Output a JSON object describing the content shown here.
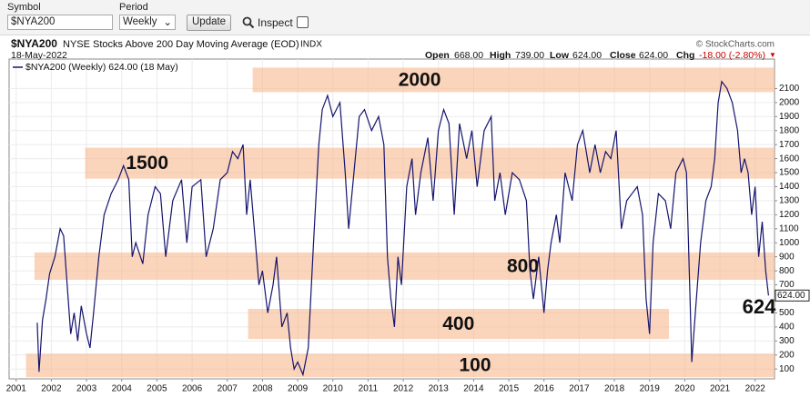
{
  "toolbar": {
    "symbol_label": "Symbol",
    "symbol_value": "$NYA200",
    "period_label": "Period",
    "period_value": "Weekly",
    "update_button": "Update",
    "inspect_label": "Inspect"
  },
  "chart_data": {
    "type": "line",
    "title": "$NYA200",
    "subtitle": "NYSE Stocks Above 200 Day Moving Average (EOD)",
    "exchange": "INDX",
    "source": "© StockCharts.com",
    "date": "18-May-2022",
    "quote": [
      {
        "label": "Open",
        "value": "668.00"
      },
      {
        "label": "High",
        "value": "739.00"
      },
      {
        "label": "Low",
        "value": "624.00"
      },
      {
        "label": "Close",
        "value": "624.00"
      },
      {
        "label": "Chg",
        "value": "-18.00 (-2.80%)"
      }
    ],
    "last_label": "624",
    "xlim": [
      2000.8,
      2022.55
    ],
    "ylim": [
      30,
      2310
    ],
    "xticks": [
      2001,
      2002,
      2003,
      2004,
      2005,
      2006,
      2007,
      2008,
      2009,
      2010,
      2011,
      2012,
      2013,
      2014,
      2015,
      2016,
      2017,
      2018,
      2019,
      2020,
      2021,
      2022
    ],
    "yticks": [
      100,
      200,
      300,
      400,
      500,
      600,
      700,
      800,
      900,
      1000,
      1100,
      1200,
      1300,
      1400,
      1500,
      1600,
      1700,
      1800,
      1900,
      2000,
      2100
    ],
    "grid": true,
    "bands": [
      {
        "label": "2000",
        "low": 2074,
        "high": 2249,
        "start": 2007.72,
        "end": 2022.55
      },
      {
        "label": "1500",
        "low": 1457,
        "high": 1678,
        "start": 2002.96,
        "end": 2022.55
      },
      {
        "label": "800",
        "low": 736,
        "high": 931,
        "start": 2001.52,
        "end": 2022.55
      },
      {
        "label": "400",
        "low": 314,
        "high": 529,
        "start": 2007.59,
        "end": 2019.55
      },
      {
        "label": "100",
        "low": 42,
        "high": 210,
        "start": 2001.28,
        "end": 2022.55
      }
    ],
    "series": [
      {
        "name": "$NYA200 (Weekly) 624.00 (18 May)",
        "color": "#14146e",
        "x": [
          2001.6,
          2001.65,
          2001.75,
          2001.85,
          2001.95,
          2002.1,
          2002.25,
          2002.35,
          2002.45,
          2002.55,
          2002.65,
          2002.75,
          2002.85,
          2003.0,
          2003.1,
          2003.2,
          2003.35,
          2003.5,
          2003.7,
          2003.9,
          2004.05,
          2004.2,
          2004.3,
          2004.4,
          2004.6,
          2004.75,
          2004.95,
          2005.1,
          2005.25,
          2005.45,
          2005.7,
          2005.85,
          2006.0,
          2006.25,
          2006.4,
          2006.6,
          2006.8,
          2007.0,
          2007.15,
          2007.3,
          2007.45,
          2007.55,
          2007.65,
          2007.8,
          2007.9,
          2008.0,
          2008.15,
          2008.3,
          2008.4,
          2008.55,
          2008.7,
          2008.8,
          2008.9,
          2009.0,
          2009.15,
          2009.3,
          2009.45,
          2009.6,
          2009.7,
          2009.85,
          2010.0,
          2010.2,
          2010.35,
          2010.45,
          2010.6,
          2010.75,
          2010.9,
          2011.1,
          2011.3,
          2011.45,
          2011.55,
          2011.65,
          2011.75,
          2011.85,
          2011.95,
          2012.1,
          2012.25,
          2012.35,
          2012.5,
          2012.7,
          2012.85,
          2013.0,
          2013.15,
          2013.3,
          2013.45,
          2013.6,
          2013.8,
          2013.95,
          2014.1,
          2014.3,
          2014.5,
          2014.6,
          2014.75,
          2014.9,
          2015.1,
          2015.3,
          2015.5,
          2015.6,
          2015.7,
          2015.85,
          2016.0,
          2016.1,
          2016.2,
          2016.35,
          2016.45,
          2016.6,
          2016.8,
          2016.95,
          2017.1,
          2017.3,
          2017.45,
          2017.6,
          2017.75,
          2017.9,
          2018.05,
          2018.2,
          2018.35,
          2018.5,
          2018.65,
          2018.8,
          2018.9,
          2019.0,
          2019.1,
          2019.25,
          2019.45,
          2019.6,
          2019.75,
          2019.95,
          2020.05,
          2020.15,
          2020.2,
          2020.3,
          2020.45,
          2020.6,
          2020.75,
          2020.85,
          2020.95,
          2021.05,
          2021.2,
          2021.35,
          2021.5,
          2021.6,
          2021.7,
          2021.8,
          2021.9,
          2022.0,
          2022.1,
          2022.2,
          2022.3,
          2022.38
        ],
        "values": [
          430,
          80,
          450,
          600,
          780,
          900,
          1100,
          1050,
          700,
          350,
          500,
          300,
          550,
          350,
          250,
          500,
          900,
          1200,
          1350,
          1450,
          1550,
          1450,
          900,
          1000,
          850,
          1200,
          1400,
          1350,
          900,
          1300,
          1450,
          1000,
          1400,
          1450,
          900,
          1100,
          1450,
          1500,
          1650,
          1600,
          1700,
          1200,
          1450,
          1000,
          700,
          800,
          500,
          700,
          900,
          400,
          500,
          250,
          100,
          150,
          60,
          250,
          1000,
          1700,
          1950,
          2050,
          1900,
          2000,
          1500,
          1100,
          1500,
          1900,
          1950,
          1800,
          1900,
          1700,
          900,
          600,
          400,
          900,
          700,
          1400,
          1600,
          1200,
          1500,
          1750,
          1300,
          1800,
          1950,
          1850,
          1200,
          1850,
          1600,
          1800,
          1400,
          1800,
          1900,
          1300,
          1500,
          1200,
          1500,
          1450,
          1300,
          800,
          600,
          900,
          500,
          800,
          1000,
          1200,
          1000,
          1500,
          1300,
          1700,
          1800,
          1500,
          1700,
          1500,
          1650,
          1600,
          1800,
          1100,
          1300,
          1350,
          1400,
          1200,
          600,
          350,
          1000,
          1350,
          1300,
          1100,
          1500,
          1600,
          1500,
          600,
          150,
          500,
          1000,
          1300,
          1400,
          1600,
          2000,
          2150,
          2100,
          2000,
          1800,
          1500,
          1600,
          1500,
          1200,
          1400,
          900,
          1150,
          800,
          624
        ]
      }
    ]
  }
}
